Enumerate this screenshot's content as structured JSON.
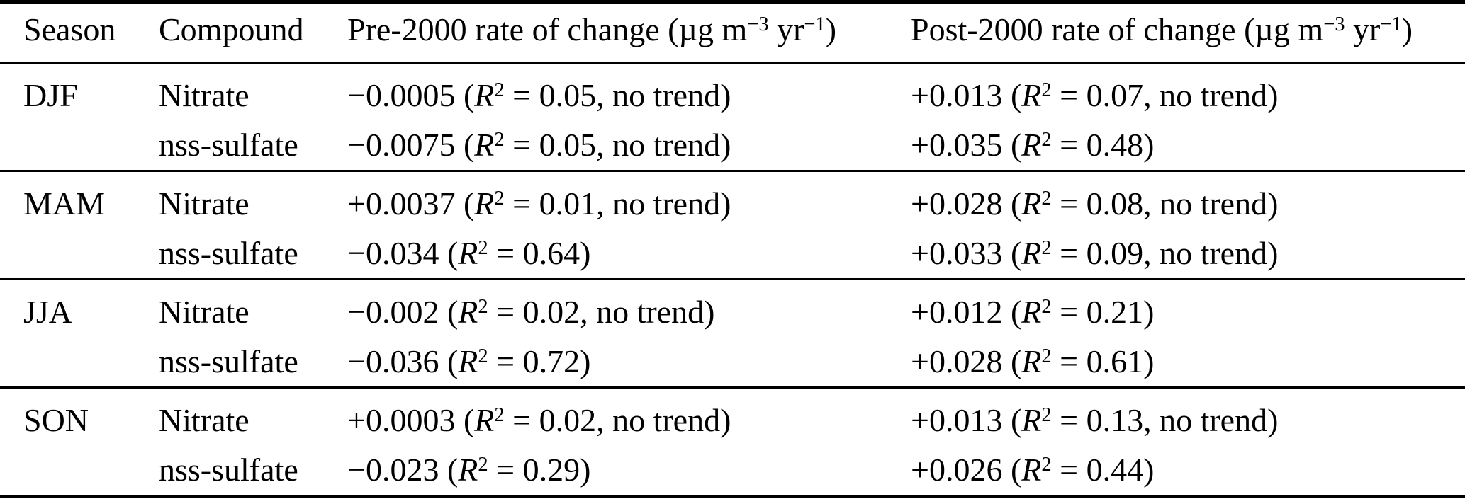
{
  "table": {
    "columns": [
      {
        "label": "Season"
      },
      {
        "label": "Compound"
      },
      {
        "label_parts": [
          "Pre-2000 rate of change (µg m",
          "−3",
          " yr",
          "−1",
          ")"
        ]
      },
      {
        "label_parts": [
          "Post-2000 rate of change (µg m",
          "−3",
          " yr",
          "−1",
          ")"
        ]
      }
    ],
    "groups": [
      {
        "season": "DJF",
        "rows": [
          {
            "compound": "Nitrate",
            "pre": [
              "−0.0005 (",
              "R",
              "2",
              " = 0.05, no trend)"
            ],
            "post": [
              "+0.013 (",
              "R",
              "2",
              " = 0.07, no trend)"
            ]
          },
          {
            "compound": "nss-sulfate",
            "pre": [
              "−0.0075 (",
              "R",
              "2",
              " = 0.05, no trend)"
            ],
            "post": [
              "+0.035 (",
              "R",
              "2",
              " = 0.48)"
            ]
          }
        ]
      },
      {
        "season": "MAM",
        "rows": [
          {
            "compound": "Nitrate",
            "pre": [
              "+0.0037 (",
              "R",
              "2",
              " = 0.01, no trend)"
            ],
            "post": [
              "+0.028 (",
              "R",
              "2",
              " = 0.08, no trend)"
            ]
          },
          {
            "compound": "nss-sulfate",
            "pre": [
              "−0.034 (",
              "R",
              "2",
              " = 0.64)"
            ],
            "post": [
              "+0.033 (",
              "R",
              "2",
              " = 0.09, no trend)"
            ]
          }
        ]
      },
      {
        "season": "JJA",
        "rows": [
          {
            "compound": "Nitrate",
            "pre": [
              "−0.002 (",
              "R",
              "2",
              " = 0.02, no trend)"
            ],
            "post": [
              "+0.012 (",
              "R",
              "2",
              " = 0.21)"
            ]
          },
          {
            "compound": "nss-sulfate",
            "pre": [
              "−0.036 (",
              "R",
              "2",
              " = 0.72)"
            ],
            "post": [
              "+0.028 (",
              "R",
              "2",
              " = 0.61)"
            ]
          }
        ]
      },
      {
        "season": "SON",
        "rows": [
          {
            "compound": "Nitrate",
            "pre": [
              "+0.0003 (",
              "R",
              "2",
              " = 0.02, no trend)"
            ],
            "post": [
              "+0.013 (",
              "R",
              "2",
              " = 0.13, no trend)"
            ]
          },
          {
            "compound": "nss-sulfate",
            "pre": [
              "−0.023 (",
              "R",
              "2",
              " = 0.29)"
            ],
            "post": [
              "+0.026 (",
              "R",
              "2",
              " = 0.44)"
            ]
          }
        ]
      }
    ],
    "colors": {
      "text": "#000000",
      "background": "#ffffff",
      "rule": "#000000"
    }
  }
}
